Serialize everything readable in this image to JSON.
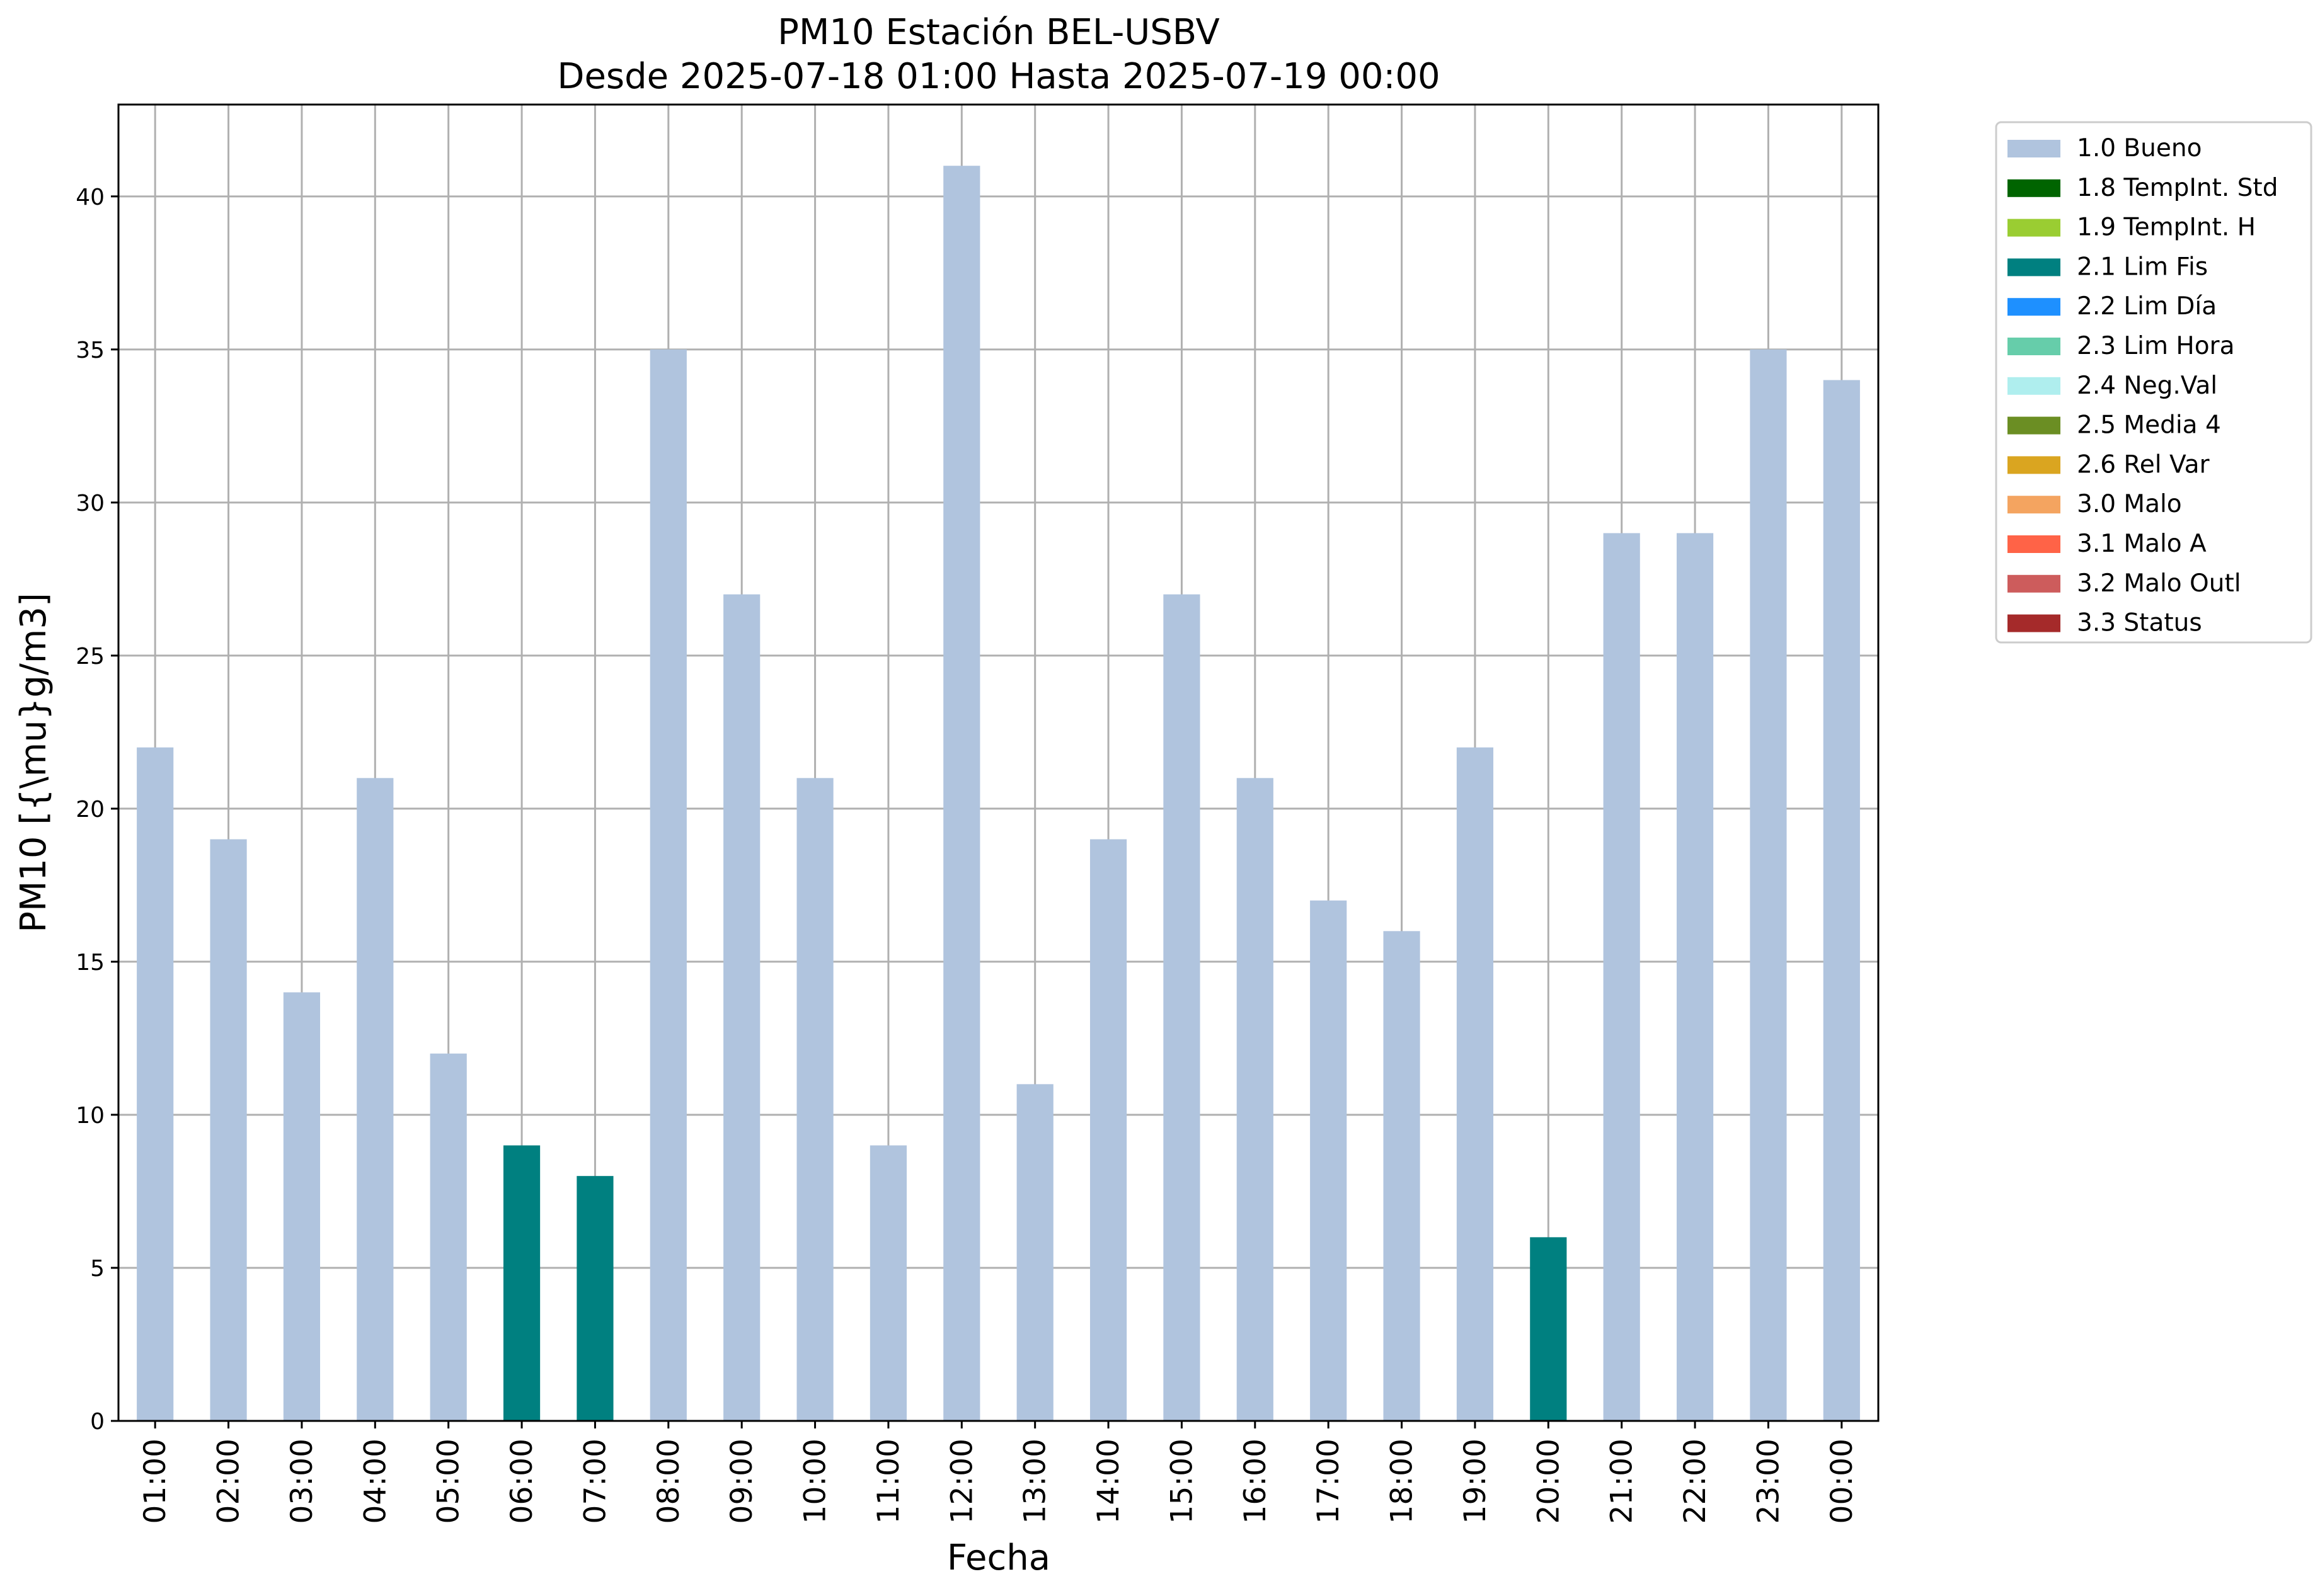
{
  "chart_data": {
    "type": "bar",
    "title": "PM10 Estación BEL-USBV",
    "subtitle": "Desde 2025-07-18 01:00 Hasta 2025-07-19 00:00",
    "xlabel": "Fecha",
    "ylabel": "PM10 [{\\mu}g/m3]",
    "ylim": [
      0,
      43
    ],
    "yticks": [
      0,
      5,
      10,
      15,
      20,
      25,
      30,
      35,
      40
    ],
    "grid": true,
    "legend_position": "outside-top-right",
    "categories": [
      "01:00",
      "02:00",
      "03:00",
      "04:00",
      "05:00",
      "06:00",
      "07:00",
      "08:00",
      "09:00",
      "10:00",
      "11:00",
      "12:00",
      "13:00",
      "14:00",
      "15:00",
      "16:00",
      "17:00",
      "18:00",
      "19:00",
      "20:00",
      "21:00",
      "22:00",
      "23:00",
      "00:00"
    ],
    "values": [
      22,
      19,
      14,
      21,
      12,
      9,
      8,
      35,
      27,
      21,
      9,
      41,
      11,
      19,
      27,
      21,
      17,
      16,
      22,
      6,
      29,
      29,
      35,
      34
    ],
    "flags": [
      "1.0 Bueno",
      "1.0 Bueno",
      "1.0 Bueno",
      "1.0 Bueno",
      "1.0 Bueno",
      "2.1 Lim Fis",
      "2.1 Lim Fis",
      "1.0 Bueno",
      "1.0 Bueno",
      "1.0 Bueno",
      "1.0 Bueno",
      "1.0 Bueno",
      "1.0 Bueno",
      "1.0 Bueno",
      "1.0 Bueno",
      "1.0 Bueno",
      "1.0 Bueno",
      "1.0 Bueno",
      "1.0 Bueno",
      "2.1 Lim Fis",
      "1.0 Bueno",
      "1.0 Bueno",
      "1.0 Bueno",
      "1.0 Bueno"
    ],
    "legend": [
      {
        "label": "1.0 Bueno",
        "color": "#b0c4de"
      },
      {
        "label": "1.8 TempInt. Std",
        "color": "#006400"
      },
      {
        "label": "1.9 TempInt. H",
        "color": "#9acd32"
      },
      {
        "label": "2.1 Lim Fis",
        "color": "#008080"
      },
      {
        "label": "2.2 Lim Día",
        "color": "#1e90ff"
      },
      {
        "label": "2.3 Lim Hora",
        "color": "#66cdaa"
      },
      {
        "label": "2.4 Neg.Val",
        "color": "#afeeee"
      },
      {
        "label": "2.5 Media 4",
        "color": "#6b8e23"
      },
      {
        "label": "2.6 Rel Var",
        "color": "#daa520"
      },
      {
        "label": "3.0 Malo",
        "color": "#f4a460"
      },
      {
        "label": "3.1 Malo A",
        "color": "#ff6347"
      },
      {
        "label": "3.2 Malo Outl",
        "color": "#cd5c5c"
      },
      {
        "label": "3.3 Status",
        "color": "#a52a2a"
      }
    ]
  }
}
